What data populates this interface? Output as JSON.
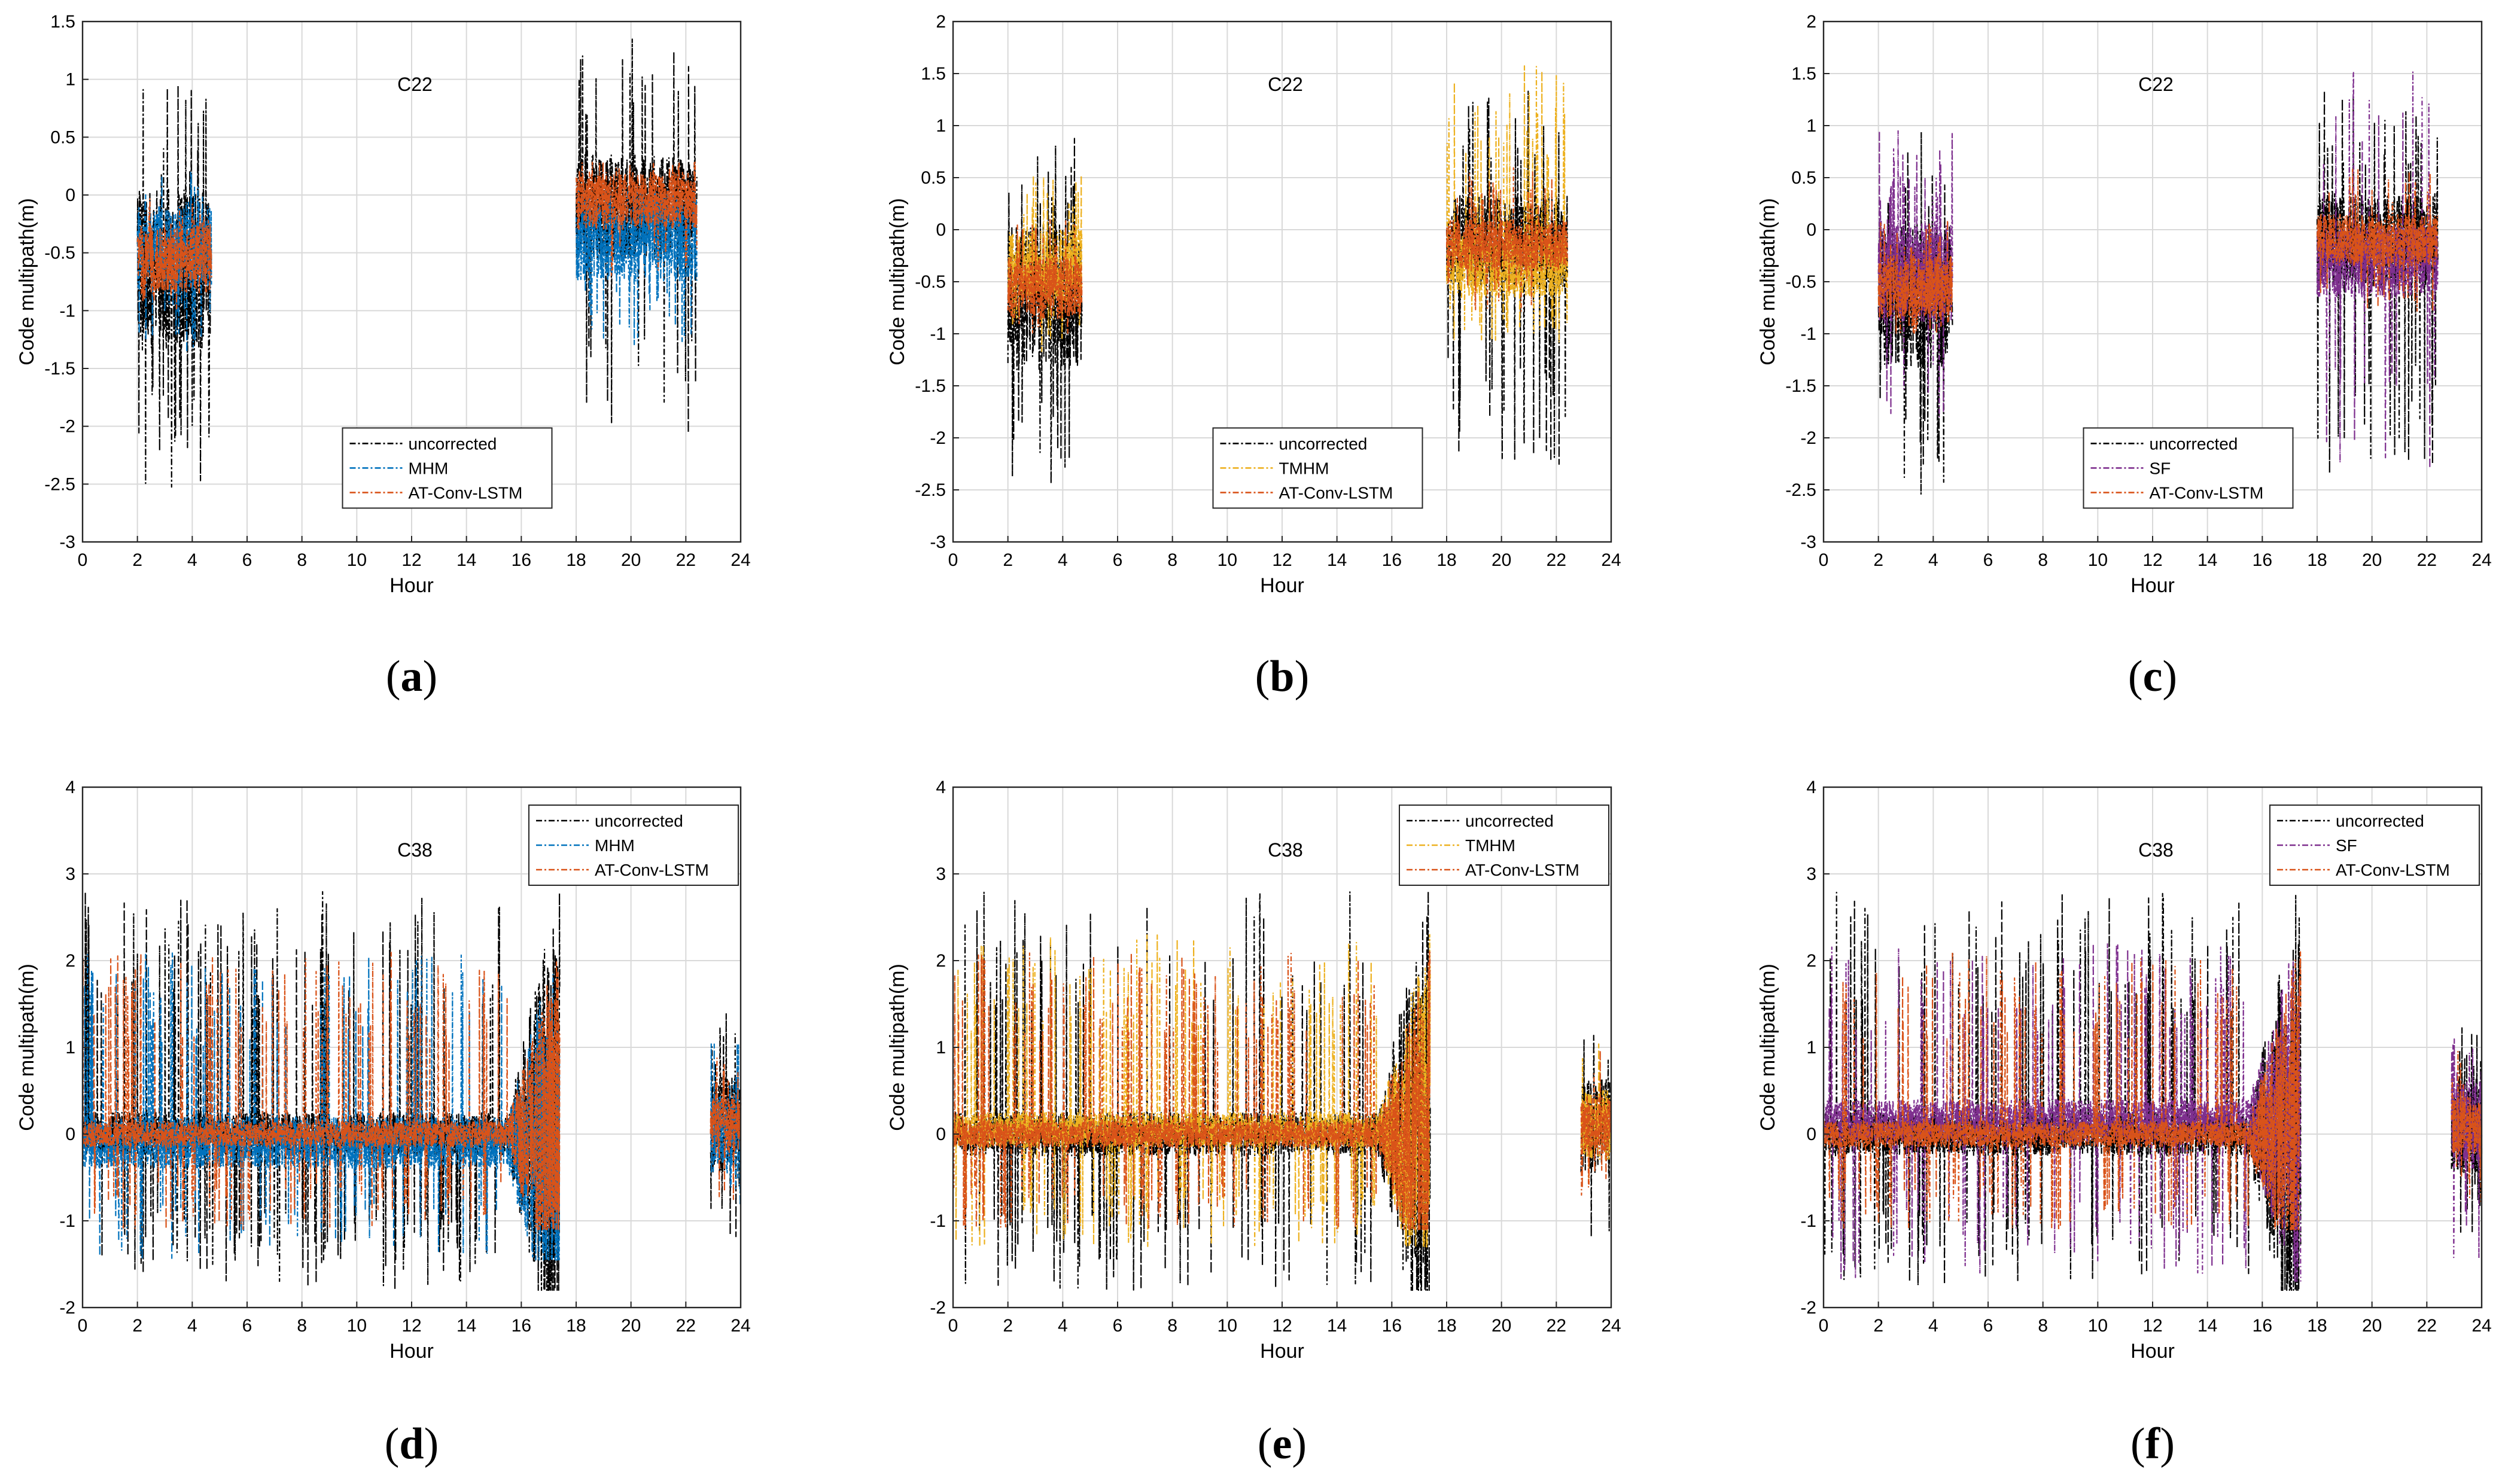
{
  "figure": {
    "caption_style": "(letter) bold"
  },
  "chart_data": [
    {
      "type": "line",
      "panel": "(a)",
      "label_letter": "a",
      "annotation": "C22",
      "xlabel": "Hour",
      "ylabel": "Code multipath(m)",
      "xlim": [
        0,
        24
      ],
      "ylim": [
        -3,
        1.5
      ],
      "xticks": [
        "0",
        "2",
        "4",
        "6",
        "8",
        "10",
        "12",
        "14",
        "16",
        "18",
        "20",
        "22",
        "24"
      ],
      "yticks": [
        "-3",
        "-2.5",
        "-2",
        "-1.5",
        "-1",
        "-0.5",
        "0",
        "0.5",
        "1",
        "1.5"
      ],
      "grid": true,
      "legend_position": "lower-center",
      "visible_intervals": [
        [
          2.0,
          4.7
        ],
        [
          18.0,
          22.4
        ]
      ],
      "series": [
        {
          "name": "uncorrected",
          "color": "#000000",
          "mean_by_interval": [
            -0.65,
            -0.1
          ],
          "amplitude": [
            0.7,
            0.45
          ],
          "extremes": [
            [
              -2.55,
              0.95
            ],
            [
              -2.35,
              1.35
            ]
          ]
        },
        {
          "name": "MHM",
          "color": "#0072BD",
          "mean_by_interval": [
            -0.45,
            -0.35
          ],
          "amplitude": [
            0.35,
            0.4
          ],
          "extremes": [
            [
              -1.4,
              0.2
            ],
            [
              -1.3,
              0.1
            ]
          ]
        },
        {
          "name": "AT-Conv-LSTM",
          "color": "#D95319",
          "mean_by_interval": [
            -0.55,
            -0.05
          ],
          "amplitude": [
            0.3,
            0.25
          ],
          "extremes": [
            [
              -1.0,
              0.05
            ],
            [
              -0.7,
              0.3
            ]
          ]
        }
      ]
    },
    {
      "type": "line",
      "panel": "(b)",
      "label_letter": "b",
      "annotation": "C22",
      "xlabel": "Hour",
      "ylabel": "Code multipath(m)",
      "xlim": [
        0,
        24
      ],
      "ylim": [
        -3,
        2
      ],
      "xticks": [
        "0",
        "2",
        "4",
        "6",
        "8",
        "10",
        "12",
        "14",
        "16",
        "18",
        "20",
        "22",
        "24"
      ],
      "yticks": [
        "-3",
        "-2.5",
        "-2",
        "-1.5",
        "-1",
        "-0.5",
        "0",
        "0.5",
        "1",
        "1.5",
        "2"
      ],
      "grid": true,
      "legend_position": "lower-center",
      "visible_intervals": [
        [
          2.0,
          4.7
        ],
        [
          18.0,
          22.4
        ]
      ],
      "series": [
        {
          "name": "uncorrected",
          "color": "#000000",
          "mean_by_interval": [
            -0.65,
            -0.1
          ],
          "amplitude": [
            0.7,
            0.45
          ],
          "extremes": [
            [
              -2.55,
              0.95
            ],
            [
              -2.35,
              1.35
            ]
          ]
        },
        {
          "name": "TMHM",
          "color": "#EDB120",
          "mean_by_interval": [
            -0.35,
            -0.35
          ],
          "amplitude": [
            0.35,
            0.3
          ],
          "extremes": [
            [
              -1.2,
              0.55
            ],
            [
              -1.1,
              1.65
            ]
          ]
        },
        {
          "name": "AT-Conv-LSTM",
          "color": "#D95319",
          "mean_by_interval": [
            -0.55,
            -0.15
          ],
          "amplitude": [
            0.3,
            0.25
          ],
          "extremes": [
            [
              -1.0,
              0.1
            ],
            [
              -0.8,
              0.6
            ]
          ]
        }
      ]
    },
    {
      "type": "line",
      "panel": "(c)",
      "label_letter": "c",
      "annotation": "C22",
      "xlabel": "Hour",
      "ylabel": "Code multipath(m)",
      "xlim": [
        0,
        24
      ],
      "ylim": [
        -3,
        2
      ],
      "xticks": [
        "0",
        "2",
        "4",
        "6",
        "8",
        "10",
        "12",
        "14",
        "16",
        "18",
        "20",
        "22",
        "24"
      ],
      "yticks": [
        "-3",
        "-2.5",
        "-2",
        "-1.5",
        "-1",
        "-0.5",
        "0",
        "0.5",
        "1",
        "1.5",
        "2"
      ],
      "grid": true,
      "legend_position": "lower-center",
      "visible_intervals": [
        [
          2.0,
          4.7
        ],
        [
          18.0,
          22.4
        ]
      ],
      "series": [
        {
          "name": "uncorrected",
          "color": "#000000",
          "mean_by_interval": [
            -0.65,
            -0.1
          ],
          "amplitude": [
            0.7,
            0.45
          ],
          "extremes": [
            [
              -2.55,
              0.95
            ],
            [
              -2.35,
              1.35
            ]
          ]
        },
        {
          "name": "SF",
          "color": "#7E2F8E",
          "mean_by_interval": [
            -0.4,
            -0.3
          ],
          "amplitude": [
            0.5,
            0.35
          ],
          "extremes": [
            [
              -1.9,
              0.95
            ],
            [
              -2.3,
              1.55
            ]
          ]
        },
        {
          "name": "AT-Conv-LSTM",
          "color": "#D95319",
          "mean_by_interval": [
            -0.55,
            -0.1
          ],
          "amplitude": [
            0.3,
            0.25
          ],
          "extremes": [
            [
              -1.0,
              0.1
            ],
            [
              -0.8,
              0.6
            ]
          ]
        }
      ]
    },
    {
      "type": "line",
      "panel": "(d)",
      "label_letter": "d",
      "annotation": "C38",
      "xlabel": "Hour",
      "ylabel": "Code multipath(m)",
      "xlim": [
        0,
        24
      ],
      "ylim": [
        -2,
        4
      ],
      "xticks": [
        "0",
        "2",
        "4",
        "6",
        "8",
        "10",
        "12",
        "14",
        "16",
        "18",
        "20",
        "22",
        "24"
      ],
      "yticks": [
        "-2",
        "-1",
        "0",
        "1",
        "2",
        "3",
        "4"
      ],
      "grid": true,
      "legend_position": "top-right",
      "visible_intervals": [
        [
          0.0,
          17.4
        ],
        [
          22.9,
          24.0
        ]
      ],
      "series": [
        {
          "name": "uncorrected",
          "color": "#000000",
          "mean_by_interval": [
            0.0,
            0.1
          ],
          "amplitude": [
            0.25,
            0.55
          ],
          "extremes": [
            [
              -1.8,
              2.8
            ],
            [
              -1.2,
              1.4
            ]
          ]
        },
        {
          "name": "MHM",
          "color": "#0072BD",
          "mean_by_interval": [
            -0.1,
            0.0
          ],
          "amplitude": [
            0.3,
            0.45
          ],
          "extremes": [
            [
              -1.45,
              2.1
            ],
            [
              -1.0,
              1.1
            ]
          ]
        },
        {
          "name": "AT-Conv-LSTM",
          "color": "#D95319",
          "mean_by_interval": [
            0.0,
            0.1
          ],
          "amplitude": [
            0.15,
            0.35
          ],
          "extremes": [
            [
              -1.1,
              2.1
            ],
            [
              -0.8,
              1.0
            ]
          ]
        }
      ]
    },
    {
      "type": "line",
      "panel": "(e)",
      "label_letter": "e",
      "annotation": "C38",
      "xlabel": "Hour",
      "ylabel": "Code multipath(m)",
      "xlim": [
        0,
        24
      ],
      "ylim": [
        -2,
        4
      ],
      "xticks": [
        "0",
        "2",
        "4",
        "6",
        "8",
        "10",
        "12",
        "14",
        "16",
        "18",
        "20",
        "22",
        "24"
      ],
      "yticks": [
        "-2",
        "-1",
        "0",
        "1",
        "2",
        "3",
        "4"
      ],
      "grid": true,
      "legend_position": "top-right",
      "visible_intervals": [
        [
          0.0,
          17.4
        ],
        [
          22.9,
          24.0
        ]
      ],
      "series": [
        {
          "name": "uncorrected",
          "color": "#000000",
          "mean_by_interval": [
            0.0,
            0.1
          ],
          "amplitude": [
            0.25,
            0.55
          ],
          "extremes": [
            [
              -1.8,
              2.8
            ],
            [
              -1.2,
              1.4
            ]
          ]
        },
        {
          "name": "TMHM",
          "color": "#EDB120",
          "mean_by_interval": [
            0.05,
            0.1
          ],
          "amplitude": [
            0.2,
            0.4
          ],
          "extremes": [
            [
              -1.3,
              2.3
            ],
            [
              -0.9,
              1.1
            ]
          ]
        },
        {
          "name": "AT-Conv-LSTM",
          "color": "#D95319",
          "mean_by_interval": [
            0.0,
            0.1
          ],
          "amplitude": [
            0.15,
            0.35
          ],
          "extremes": [
            [
              -1.1,
              2.1
            ],
            [
              -0.8,
              1.0
            ]
          ]
        }
      ]
    },
    {
      "type": "line",
      "panel": "(f)",
      "label_letter": "f",
      "annotation": "C38",
      "xlabel": "Hour",
      "ylabel": "Code multipath(m)",
      "xlim": [
        0,
        24
      ],
      "ylim": [
        -2,
        4
      ],
      "xticks": [
        "0",
        "2",
        "4",
        "6",
        "8",
        "10",
        "12",
        "14",
        "16",
        "18",
        "20",
        "22",
        "24"
      ],
      "yticks": [
        "-2",
        "-1",
        "0",
        "1",
        "2",
        "3",
        "4"
      ],
      "grid": true,
      "legend_position": "top-right",
      "visible_intervals": [
        [
          0.0,
          17.4
        ],
        [
          22.9,
          24.0
        ]
      ],
      "series": [
        {
          "name": "uncorrected",
          "color": "#000000",
          "mean_by_interval": [
            0.0,
            0.1
          ],
          "amplitude": [
            0.25,
            0.55
          ],
          "extremes": [
            [
              -1.8,
              2.8
            ],
            [
              -1.2,
              1.4
            ]
          ]
        },
        {
          "name": "SF",
          "color": "#7E2F8E",
          "mean_by_interval": [
            0.15,
            0.1
          ],
          "amplitude": [
            0.25,
            0.5
          ],
          "extremes": [
            [
              -1.7,
              2.2
            ],
            [
              -1.5,
              1.2
            ]
          ]
        },
        {
          "name": "AT-Conv-LSTM",
          "color": "#D95319",
          "mean_by_interval": [
            0.0,
            0.1
          ],
          "amplitude": [
            0.15,
            0.35
          ],
          "extremes": [
            [
              -1.1,
              2.1
            ],
            [
              -0.8,
              1.0
            ]
          ]
        }
      ]
    }
  ]
}
